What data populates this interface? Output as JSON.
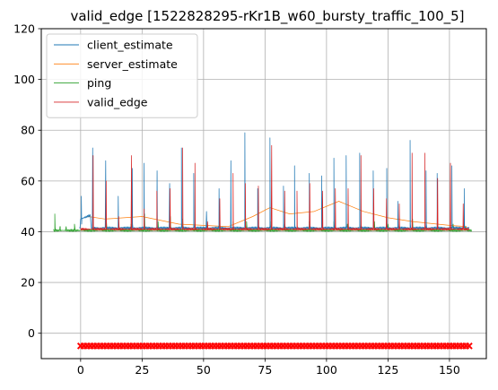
{
  "chart_data": {
    "type": "line",
    "title": "valid_edge [1522828295-rKr1B_w60_bursty_traffic_100_5]",
    "xlabel": "",
    "ylabel": "",
    "xlim": [
      -16,
      165
    ],
    "ylim": [
      -10,
      120
    ],
    "xticks": [
      0,
      25,
      50,
      75,
      100,
      125,
      150
    ],
    "yticks": [
      0,
      20,
      40,
      60,
      80,
      100,
      120
    ],
    "grid": true,
    "legend_position": "top-left",
    "series": [
      {
        "name": "client_estimate",
        "color": "#1f77b4",
        "baseline": 41.5,
        "start": -0.5,
        "end": 158,
        "early_segment": {
          "x0": 0,
          "x1": 4,
          "y0": 45,
          "y1": 46.5
        },
        "spikes": [
          [
            0.3,
            54
          ],
          [
            4.9,
            73
          ],
          [
            10.2,
            68
          ],
          [
            15.3,
            54
          ],
          [
            21.0,
            65
          ],
          [
            25.8,
            67
          ],
          [
            31.1,
            64
          ],
          [
            36.2,
            59
          ],
          [
            41.0,
            73
          ],
          [
            46.0,
            63
          ],
          [
            51.2,
            48
          ],
          [
            56.3,
            57
          ],
          [
            61.1,
            68
          ],
          [
            66.8,
            79
          ],
          [
            72.0,
            57
          ],
          [
            77.0,
            77
          ],
          [
            82.5,
            58
          ],
          [
            87.0,
            66
          ],
          [
            93.0,
            63
          ],
          [
            98.0,
            62
          ],
          [
            103.0,
            69
          ],
          [
            108.0,
            70
          ],
          [
            113.5,
            71
          ],
          [
            119.0,
            64
          ],
          [
            124.5,
            65
          ],
          [
            129.0,
            52
          ],
          [
            134.0,
            76
          ],
          [
            140.5,
            64
          ],
          [
            145.0,
            63
          ],
          [
            151.0,
            66
          ],
          [
            156.0,
            57
          ]
        ]
      },
      {
        "name": "server_estimate",
        "color": "#ff7f0e",
        "points": [
          [
            3,
            46
          ],
          [
            10,
            45
          ],
          [
            25,
            46
          ],
          [
            40,
            43
          ],
          [
            60,
            42
          ],
          [
            70,
            46
          ],
          [
            77,
            49.5
          ],
          [
            85,
            47
          ],
          [
            95,
            48
          ],
          [
            105,
            52
          ],
          [
            115,
            48
          ],
          [
            125,
            45.5
          ],
          [
            135,
            44
          ],
          [
            150,
            42.5
          ],
          [
            157,
            42
          ]
        ]
      },
      {
        "name": "ping",
        "color": "#2ca02c",
        "baseline": 40.5,
        "start": -11,
        "end": 159,
        "spikes": [
          [
            -10.5,
            47
          ],
          [
            -8.4,
            42
          ],
          [
            -6,
            41.5
          ],
          [
            -2.5,
            43
          ],
          [
            5,
            45
          ],
          [
            10.5,
            44
          ],
          [
            15.5,
            43
          ],
          [
            20.5,
            43
          ],
          [
            26,
            47
          ],
          [
            31.5,
            44
          ],
          [
            36.5,
            46
          ],
          [
            41.5,
            45
          ],
          [
            46.5,
            43
          ],
          [
            51.5,
            42.5
          ],
          [
            56.5,
            43
          ],
          [
            62,
            44
          ],
          [
            67.5,
            44
          ],
          [
            77.5,
            44
          ],
          [
            83,
            43
          ],
          [
            93,
            44
          ],
          [
            103,
            44
          ],
          [
            108.5,
            43
          ],
          [
            119.5,
            44
          ],
          [
            125,
            43
          ],
          [
            135,
            45
          ],
          [
            140.5,
            42
          ],
          [
            151.5,
            43
          ],
          [
            156.5,
            42
          ]
        ]
      },
      {
        "name": "valid_edge",
        "color": "#d62728",
        "baseline": 41,
        "start": 0,
        "end": 158,
        "spikes": [
          [
            5.1,
            70
          ],
          [
            10.4,
            60
          ],
          [
            15.5,
            46
          ],
          [
            20.7,
            70
          ],
          [
            25.8,
            49
          ],
          [
            31.0,
            56
          ],
          [
            36.4,
            57
          ],
          [
            41.5,
            73
          ],
          [
            46.5,
            67
          ],
          [
            51.6,
            44
          ],
          [
            56.6,
            53
          ],
          [
            62.0,
            63
          ],
          [
            67.0,
            59
          ],
          [
            72.3,
            58
          ],
          [
            77.7,
            74
          ],
          [
            83.0,
            56
          ],
          [
            88.0,
            56
          ],
          [
            93.2,
            59
          ],
          [
            98.4,
            56
          ],
          [
            103.6,
            57
          ],
          [
            108.8,
            57
          ],
          [
            114.0,
            70
          ],
          [
            119.2,
            57
          ],
          [
            124.4,
            53
          ],
          [
            129.6,
            51
          ],
          [
            134.8,
            71
          ],
          [
            140.0,
            71
          ],
          [
            145.2,
            61
          ],
          [
            150.4,
            67
          ],
          [
            155.6,
            51
          ]
        ]
      },
      {
        "name": "",
        "color": "#ff0000",
        "marker": "x",
        "y": -5,
        "x_start": 0,
        "x_end": 158,
        "count": 120
      }
    ]
  }
}
